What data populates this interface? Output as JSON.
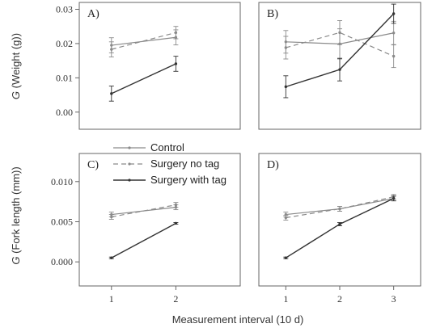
{
  "chart_data": {
    "type": "line",
    "xlabel": "Measurement interval (10 d)",
    "colors": {
      "control": "#8a8a8a",
      "surgery_no_tag": "#8a8a8a",
      "surgery_with_tag": "#333333",
      "axis": "#666666"
    },
    "legend": {
      "placement": "center-left",
      "items": [
        {
          "label": "Control",
          "style": "solid-light"
        },
        {
          "label": "Surgery no tag",
          "style": "dashed"
        },
        {
          "label": "Surgery with tag",
          "style": "solid-dark"
        }
      ]
    },
    "rows": [
      {
        "ylabel_prefix": "G",
        "ylabel_suffix": " (Weight (g))",
        "ylim": [
          -0.005,
          0.032
        ],
        "yticks": [
          0.0,
          0.01,
          0.02,
          0.03
        ],
        "yticklabels": [
          "0.00",
          "0.01",
          "0.02",
          "0.03"
        ]
      },
      {
        "ylabel_prefix": "G",
        "ylabel_suffix": " (Fork length (mm))",
        "ylim": [
          -0.003,
          0.0135
        ],
        "yticks": [
          0.0,
          0.005,
          0.01
        ],
        "yticklabels": [
          "0.000",
          "0.005",
          "0.010"
        ]
      }
    ],
    "panels": [
      {
        "label": "A)",
        "row": 0,
        "xlim": [
          0.5,
          3.0
        ],
        "x": [
          1,
          2
        ],
        "series": [
          {
            "key": "control",
            "name": "Control",
            "values": [
              0.0195,
              0.0218
            ],
            "errors": [
              0.0022,
              0.0022
            ]
          },
          {
            "key": "surgery_no_tag",
            "name": "Surgery no tag",
            "values": [
              0.0183,
              0.0232
            ],
            "errors": [
              0.0022,
              0.0018
            ]
          },
          {
            "key": "surgery_with_tag",
            "name": "Surgery with tag",
            "values": [
              0.0054,
              0.0141
            ],
            "errors": [
              0.0022,
              0.0022
            ]
          }
        ]
      },
      {
        "label": "B)",
        "row": 0,
        "xlim": [
          0.5,
          3.5
        ],
        "x": [
          1,
          2,
          3
        ],
        "series": [
          {
            "key": "control",
            "name": "Control",
            "values": [
              0.0205,
              0.0199,
              0.0231
            ],
            "errors": [
              0.0033,
              0.0044,
              0.0034
            ]
          },
          {
            "key": "surgery_no_tag",
            "name": "Surgery no tag",
            "values": [
              0.0188,
              0.0232,
              0.0163
            ],
            "errors": [
              0.0033,
              0.0035,
              0.0033
            ]
          },
          {
            "key": "surgery_with_tag",
            "name": "Surgery with tag",
            "values": [
              0.0074,
              0.0124,
              0.0287
            ],
            "errors": [
              0.0032,
              0.0033,
              0.0028
            ]
          }
        ]
      },
      {
        "label": "C)",
        "row": 1,
        "xlim": [
          0.5,
          3.0
        ],
        "x": [
          1,
          2
        ],
        "series": [
          {
            "key": "control",
            "name": "Control",
            "values": [
              0.0059,
              0.0068
            ],
            "errors": [
              0.0003,
              0.0003
            ]
          },
          {
            "key": "surgery_no_tag",
            "name": "Surgery no tag",
            "values": [
              0.0056,
              0.0071
            ],
            "errors": [
              0.0003,
              0.0003
            ]
          },
          {
            "key": "surgery_with_tag",
            "name": "Surgery with tag",
            "values": [
              0.0005,
              0.0048
            ],
            "errors": [
              0.0001,
              0.0001
            ]
          }
        ]
      },
      {
        "label": "D)",
        "row": 1,
        "xlim": [
          0.5,
          3.5
        ],
        "x": [
          1,
          2,
          3
        ],
        "series": [
          {
            "key": "control",
            "name": "Control",
            "values": [
              0.0059,
              0.0066,
              0.0079
            ],
            "errors": [
              0.0003,
              0.0003,
              0.0003
            ]
          },
          {
            "key": "surgery_no_tag",
            "name": "Surgery no tag",
            "values": [
              0.0055,
              0.0066,
              0.0081
            ],
            "errors": [
              0.0003,
              0.0003,
              0.0003
            ]
          },
          {
            "key": "surgery_with_tag",
            "name": "Surgery with tag",
            "values": [
              0.0005,
              0.0047,
              0.0079
            ],
            "errors": [
              0.0001,
              0.0002,
              0.0003
            ]
          }
        ]
      }
    ]
  }
}
